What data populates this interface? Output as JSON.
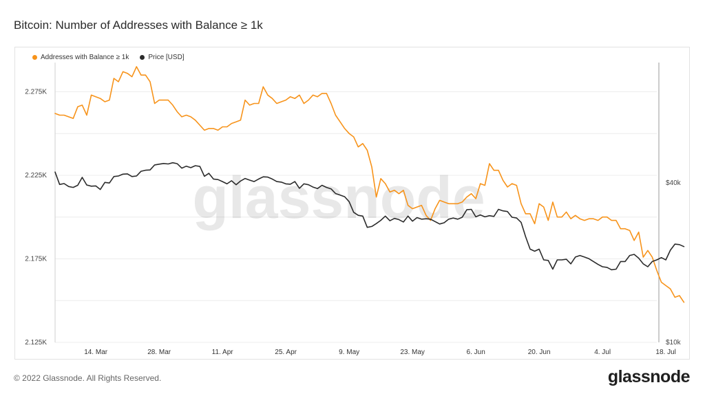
{
  "title": "Bitcoin: Number of Addresses with Balance ≥ 1k",
  "footer": {
    "copyright": "© 2022 Glassnode. All Rights Reserved.",
    "logo": "glassnode"
  },
  "watermark": "glassnode",
  "colors": {
    "addresses": "#f7931a",
    "price": "#2b2b2b",
    "grid": "#ececec"
  },
  "chart_data": {
    "type": "line",
    "legend_position": "top-left",
    "grid": true,
    "x_ticks": [
      "14. Mar",
      "28. Mar",
      "11. Apr",
      "25. Apr",
      "9. May",
      "23. May",
      "6. Jun",
      "20. Jun",
      "4. Jul",
      "18. Jul"
    ],
    "y_left_ticks": [
      "2.275K",
      "2.225K",
      "2.175K",
      "2.125K"
    ],
    "y_right_ticks": [
      "$40k",
      "$10k"
    ],
    "y_left_range": [
      2125,
      2290
    ],
    "y_right_log_range": [
      10000,
      110000
    ],
    "x_range_days": [
      0,
      133
    ],
    "series": [
      {
        "name": "Addresses with Balance ≥ 1k",
        "axis": "left",
        "points": [
          [
            0,
            2262
          ],
          [
            1,
            2261
          ],
          [
            2,
            2261
          ],
          [
            3,
            2260
          ],
          [
            4,
            2259
          ],
          [
            5,
            2266
          ],
          [
            6,
            2267
          ],
          [
            7,
            2261
          ],
          [
            8,
            2273
          ],
          [
            9,
            2272
          ],
          [
            10,
            2271
          ],
          [
            11,
            2269
          ],
          [
            12,
            2270
          ],
          [
            13,
            2283
          ],
          [
            14,
            2281
          ],
          [
            15,
            2287
          ],
          [
            16,
            2286
          ],
          [
            17,
            2284
          ],
          [
            18,
            2290
          ],
          [
            19,
            2285
          ],
          [
            20,
            2285
          ],
          [
            21,
            2281
          ],
          [
            22,
            2268
          ],
          [
            23,
            2270
          ],
          [
            24,
            2270
          ],
          [
            25,
            2270
          ],
          [
            26,
            2267
          ],
          [
            27,
            2263
          ],
          [
            28,
            2260
          ],
          [
            29,
            2261
          ],
          [
            30,
            2260
          ],
          [
            31,
            2258
          ],
          [
            32,
            2255
          ],
          [
            33,
            2252
          ],
          [
            34,
            2253
          ],
          [
            35,
            2253
          ],
          [
            36,
            2252
          ],
          [
            37,
            2254
          ],
          [
            38,
            2254
          ],
          [
            39,
            2256
          ],
          [
            40,
            2257
          ],
          [
            41,
            2258
          ],
          [
            42,
            2270
          ],
          [
            43,
            2267
          ],
          [
            44,
            2268
          ],
          [
            45,
            2268
          ],
          [
            46,
            2278
          ],
          [
            47,
            2273
          ],
          [
            48,
            2271
          ],
          [
            49,
            2268
          ],
          [
            50,
            2269
          ],
          [
            51,
            2270
          ],
          [
            52,
            2272
          ],
          [
            53,
            2271
          ],
          [
            54,
            2273
          ],
          [
            55,
            2268
          ],
          [
            56,
            2270
          ],
          [
            57,
            2273
          ],
          [
            58,
            2272
          ],
          [
            59,
            2274
          ],
          [
            60,
            2274
          ],
          [
            61,
            2268
          ],
          [
            62,
            2261
          ],
          [
            63,
            2257
          ],
          [
            64,
            2253
          ],
          [
            65,
            2250
          ],
          [
            66,
            2248
          ],
          [
            67,
            2242
          ],
          [
            68,
            2244
          ],
          [
            69,
            2240
          ],
          [
            70,
            2230
          ],
          [
            71,
            2212
          ],
          [
            72,
            2223
          ],
          [
            73,
            2220
          ],
          [
            74,
            2215
          ],
          [
            75,
            2216
          ],
          [
            76,
            2214
          ],
          [
            77,
            2216
          ],
          [
            78,
            2207
          ],
          [
            79,
            2205
          ],
          [
            80,
            2206
          ],
          [
            81,
            2207
          ],
          [
            82,
            2201
          ],
          [
            83,
            2198
          ],
          [
            84,
            2205
          ],
          [
            85,
            2210
          ],
          [
            86,
            2209
          ],
          [
            87,
            2208
          ],
          [
            88,
            2208
          ],
          [
            89,
            2208
          ],
          [
            90,
            2209
          ],
          [
            91,
            2212
          ],
          [
            92,
            2214
          ],
          [
            93,
            2211
          ],
          [
            94,
            2220
          ],
          [
            95,
            2219
          ],
          [
            96,
            2232
          ],
          [
            97,
            2228
          ],
          [
            98,
            2228
          ],
          [
            99,
            2222
          ],
          [
            100,
            2218
          ],
          [
            101,
            2220
          ],
          [
            102,
            2219
          ],
          [
            103,
            2208
          ],
          [
            104,
            2202
          ],
          [
            105,
            2202
          ],
          [
            106,
            2196
          ],
          [
            107,
            2208
          ],
          [
            108,
            2206
          ],
          [
            109,
            2198
          ],
          [
            110,
            2209
          ],
          [
            111,
            2200
          ],
          [
            112,
            2200
          ],
          [
            113,
            2203
          ],
          [
            114,
            2199
          ],
          [
            115,
            2201
          ],
          [
            116,
            2199
          ],
          [
            117,
            2198
          ],
          [
            118,
            2199
          ],
          [
            119,
            2199
          ],
          [
            120,
            2198
          ],
          [
            121,
            2200
          ],
          [
            122,
            2200
          ],
          [
            123,
            2198
          ],
          [
            124,
            2198
          ],
          [
            125,
            2193
          ],
          [
            126,
            2193
          ],
          [
            127,
            2192
          ],
          [
            128,
            2186
          ],
          [
            129,
            2191
          ],
          [
            130,
            2176
          ],
          [
            131,
            2180
          ],
          [
            132,
            2176
          ],
          [
            133,
            2168
          ],
          [
            134,
            2161
          ],
          [
            135,
            2159
          ],
          [
            136,
            2157
          ],
          [
            137,
            2152
          ],
          [
            138,
            2153
          ],
          [
            139,
            2149
          ]
        ]
      },
      {
        "name": "Price [USD]",
        "axis": "right",
        "points": [
          [
            0,
            44000
          ],
          [
            1,
            39500
          ],
          [
            2,
            39800
          ],
          [
            3,
            38800
          ],
          [
            4,
            38500
          ],
          [
            5,
            39200
          ],
          [
            6,
            42000
          ],
          [
            7,
            39300
          ],
          [
            8,
            38900
          ],
          [
            9,
            39000
          ],
          [
            10,
            37800
          ],
          [
            11,
            40200
          ],
          [
            12,
            40000
          ],
          [
            13,
            42300
          ],
          [
            14,
            42500
          ],
          [
            15,
            43200
          ],
          [
            16,
            43300
          ],
          [
            17,
            42300
          ],
          [
            18,
            42500
          ],
          [
            19,
            44300
          ],
          [
            20,
            44700
          ],
          [
            21,
            44800
          ],
          [
            22,
            46800
          ],
          [
            23,
            47100
          ],
          [
            24,
            47400
          ],
          [
            25,
            47200
          ],
          [
            26,
            47700
          ],
          [
            27,
            47300
          ],
          [
            28,
            45500
          ],
          [
            29,
            46300
          ],
          [
            30,
            45700
          ],
          [
            31,
            46500
          ],
          [
            32,
            46200
          ],
          [
            33,
            42400
          ],
          [
            34,
            43500
          ],
          [
            35,
            41400
          ],
          [
            36,
            41200
          ],
          [
            37,
            40500
          ],
          [
            38,
            39700
          ],
          [
            39,
            40800
          ],
          [
            40,
            39400
          ],
          [
            41,
            40700
          ],
          [
            42,
            41600
          ],
          [
            43,
            41000
          ],
          [
            44,
            40500
          ],
          [
            45,
            41400
          ],
          [
            46,
            42200
          ],
          [
            47,
            42100
          ],
          [
            48,
            41400
          ],
          [
            49,
            40500
          ],
          [
            50,
            40300
          ],
          [
            51,
            39700
          ],
          [
            52,
            39600
          ],
          [
            53,
            40500
          ],
          [
            54,
            38200
          ],
          [
            55,
            39700
          ],
          [
            56,
            39400
          ],
          [
            57,
            38600
          ],
          [
            58,
            38100
          ],
          [
            59,
            39200
          ],
          [
            60,
            38500
          ],
          [
            61,
            38000
          ],
          [
            62,
            36500
          ],
          [
            63,
            36000
          ],
          [
            64,
            35500
          ],
          [
            65,
            34000
          ],
          [
            66,
            31000
          ],
          [
            67,
            30200
          ],
          [
            68,
            30000
          ],
          [
            69,
            27200
          ],
          [
            70,
            27400
          ],
          [
            71,
            28100
          ],
          [
            72,
            28900
          ],
          [
            73,
            30000
          ],
          [
            74,
            28800
          ],
          [
            75,
            29400
          ],
          [
            76,
            29100
          ],
          [
            77,
            28500
          ],
          [
            78,
            30000
          ],
          [
            79,
            28700
          ],
          [
            80,
            29600
          ],
          [
            81,
            29200
          ],
          [
            82,
            29300
          ],
          [
            83,
            29200
          ],
          [
            84,
            28600
          ],
          [
            85,
            28000
          ],
          [
            86,
            28300
          ],
          [
            87,
            29200
          ],
          [
            88,
            29500
          ],
          [
            89,
            29200
          ],
          [
            90,
            29700
          ],
          [
            91,
            31700
          ],
          [
            92,
            31800
          ],
          [
            93,
            29800
          ],
          [
            94,
            30300
          ],
          [
            95,
            29800
          ],
          [
            96,
            30100
          ],
          [
            97,
            29900
          ],
          [
            98,
            31800
          ],
          [
            99,
            31400
          ],
          [
            100,
            31200
          ],
          [
            101,
            29700
          ],
          [
            102,
            29500
          ],
          [
            103,
            28400
          ],
          [
            104,
            25100
          ],
          [
            105,
            22500
          ],
          [
            106,
            22100
          ],
          [
            107,
            22500
          ],
          [
            108,
            20500
          ],
          [
            109,
            20400
          ],
          [
            110,
            18900
          ],
          [
            111,
            20500
          ],
          [
            112,
            20500
          ],
          [
            113,
            20600
          ],
          [
            114,
            19800
          ],
          [
            115,
            21000
          ],
          [
            116,
            21300
          ],
          [
            117,
            21000
          ],
          [
            118,
            20700
          ],
          [
            119,
            20200
          ],
          [
            120,
            19700
          ],
          [
            121,
            19300
          ],
          [
            122,
            19200
          ],
          [
            123,
            18800
          ],
          [
            124,
            18900
          ],
          [
            125,
            20200
          ],
          [
            126,
            20200
          ],
          [
            127,
            21300
          ],
          [
            128,
            21500
          ],
          [
            129,
            20800
          ],
          [
            130,
            19800
          ],
          [
            131,
            19300
          ],
          [
            132,
            20200
          ],
          [
            133,
            20500
          ],
          [
            134,
            20900
          ],
          [
            135,
            20500
          ],
          [
            136,
            22300
          ],
          [
            137,
            23500
          ],
          [
            138,
            23400
          ],
          [
            139,
            23000
          ]
        ]
      }
    ]
  }
}
